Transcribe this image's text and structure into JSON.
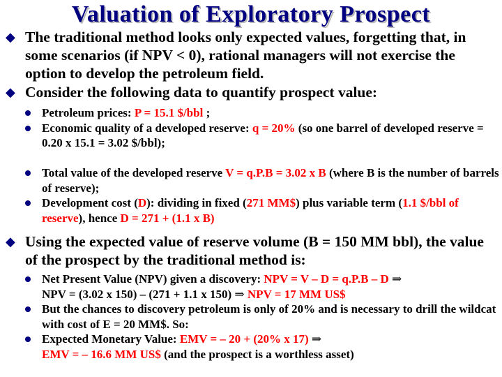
{
  "title": "Valuation of Exploratory Prospect",
  "accent_color": "#000080",
  "highlight_color": "#ff0000",
  "bullets": [
    {
      "text": "The traditional method looks only expected values, forgetting that, in some scenarios (if NPV < 0), rational managers will not exercise the option to develop the petroleum field."
    },
    {
      "text": "Consider the following data to quantify prospect value:"
    }
  ],
  "data_items": {
    "price": {
      "label": "Petroleum prices: ",
      "value": "P = 15.1 $/bbl",
      "tail": " ;"
    },
    "quality": {
      "label": "Economic quality of a developed reserve: ",
      "value": "q = 20%",
      "tail": " (so one barrel of developed reserve = 0.20 x 15.1 = 3.02 $/bbl);"
    },
    "total": {
      "label": "Total value of the developed reserve ",
      "value": "V = q.P.B = 3.02 x B",
      "tail": " (where B is the number of barrels of reserve);"
    },
    "cost": {
      "a": "Development cost (",
      "b": "D",
      "c": "): dividing in  fixed (",
      "d": "271 MM$",
      "e": ") plus variable term (",
      "f": "1.1 $/bbl of reserve",
      "g": "), hence ",
      "h": "D = 271 + (1.1 x B)"
    }
  },
  "bullet3": "Using the expected value of reserve volume (B = 150 MM bbl), the value of the prospect by the traditional method is:",
  "results": {
    "npv_label": "Net Present Value (NPV) given a discovery: ",
    "npv_formula": "NPV = V – D = q.P.B – D",
    "npv_calc": "NPV = (3.02 x 150) – (271 + 1.1 x 150)",
    "npv_result": "NPV =  17 MM US$",
    "chance_text": "But the chances to discovery petroleum is only of 20% and is necessary to drill the wildcat with cost of E = 20 MM$. So:",
    "emv_label": "Expected Monetary Value: ",
    "emv_formula": "EMV = – 20 + (20% x 17)",
    "emv_result": "EMV = – 16.6  MM US$",
    "emv_tail": " (and the prospect is a worthless asset)"
  },
  "icons": {
    "level1": "diamond-bullet",
    "level2": "dot-bullet",
    "implies": "implies-arrow"
  }
}
